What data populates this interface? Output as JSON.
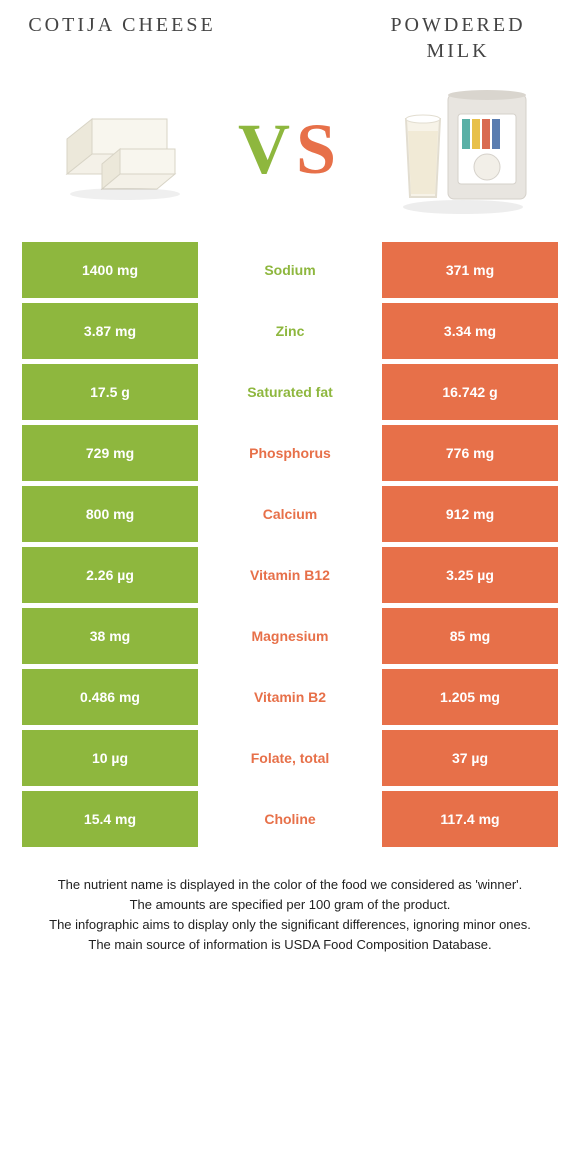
{
  "titles": {
    "left": "COTIJA CHEESE",
    "right": "POWDERED MILK"
  },
  "vs": {
    "v_color": "#8eb73e",
    "s_color": "#e77049"
  },
  "colors": {
    "left_cell": "#8eb73e",
    "right_cell": "#e77049",
    "left_text": "#8eb73e",
    "right_text": "#e77049"
  },
  "rows": [
    {
      "left": "1400 mg",
      "label": "Sodium",
      "right": "371 mg",
      "winner": "left"
    },
    {
      "left": "3.87 mg",
      "label": "Zinc",
      "right": "3.34 mg",
      "winner": "left"
    },
    {
      "left": "17.5 g",
      "label": "Saturated fat",
      "right": "16.742 g",
      "winner": "left"
    },
    {
      "left": "729 mg",
      "label": "Phosphorus",
      "right": "776 mg",
      "winner": "right"
    },
    {
      "left": "800 mg",
      "label": "Calcium",
      "right": "912 mg",
      "winner": "right"
    },
    {
      "left": "2.26 µg",
      "label": "Vitamin B12",
      "right": "3.25 µg",
      "winner": "right"
    },
    {
      "left": "38 mg",
      "label": "Magnesium",
      "right": "85 mg",
      "winner": "right"
    },
    {
      "left": "0.486 mg",
      "label": "Vitamin B2",
      "right": "1.205 mg",
      "winner": "right"
    },
    {
      "left": "10 µg",
      "label": "Folate, total",
      "right": "37 µg",
      "winner": "right"
    },
    {
      "left": "15.4 mg",
      "label": "Choline",
      "right": "117.4 mg",
      "winner": "right"
    }
  ],
  "footer": [
    "The nutrient name is displayed in the color of the food we considered as 'winner'.",
    "The amounts are specified per 100 gram of the product.",
    "The infographic aims to display only the significant differences, ignoring minor ones.",
    "The main source of information is USDA Food Composition Database."
  ]
}
